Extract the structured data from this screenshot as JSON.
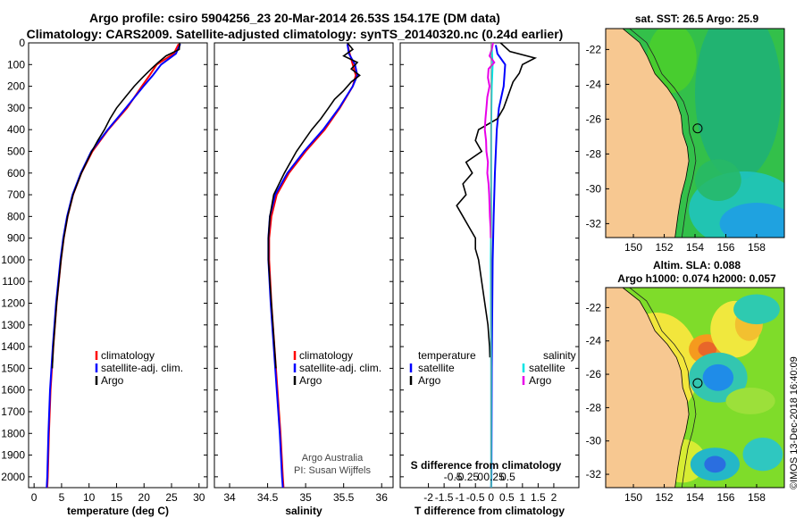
{
  "header": {
    "line1": "Argo profile: csiro 5904256_23 20-Mar-2014 26.53S 154.17E (DM data)",
    "line2": "Climatology: CARS2009. Satellite-adjusted climatology: synTS_20140320.nc (0.24d earlier)"
  },
  "colors": {
    "climatology": "#ff0000",
    "satellite": "#0000ff",
    "argo": "#000000",
    "sal_satellite": "#00e5e5",
    "sal_argo": "#e800e8",
    "land": "#f7c891"
  },
  "chart_data": [
    {
      "type": "line",
      "id": "temperature-panel",
      "xlabel": "temperature (deg C)",
      "ylabel": "",
      "xlim": [
        -1,
        31.5
      ],
      "ylim": [
        2050,
        0
      ],
      "invert_y": true,
      "xticks": [
        0,
        5,
        10,
        15,
        20,
        25,
        30
      ],
      "yticks": [
        0,
        100,
        200,
        300,
        400,
        500,
        600,
        700,
        800,
        900,
        1000,
        1100,
        1200,
        1300,
        1400,
        1500,
        1600,
        1700,
        1800,
        1900,
        2000
      ],
      "legend": [
        "climatology",
        "satellite-adj. clim.",
        "Argo"
      ],
      "series": [
        {
          "name": "climatology",
          "color": "#ff0000",
          "depth": [
            5,
            50,
            100,
            150,
            200,
            300,
            400,
            500,
            600,
            700,
            800,
            900,
            1000,
            1200,
            1400,
            1600,
            1800,
            2000,
            2050
          ],
          "values": [
            26.3,
            25.4,
            22.3,
            21.0,
            19.6,
            16.9,
            13.5,
            10.6,
            8.6,
            7.1,
            6.1,
            5.4,
            4.9,
            4.1,
            3.5,
            3.0,
            2.7,
            2.5,
            2.4
          ]
        },
        {
          "name": "satellite-adj. clim.",
          "color": "#0000ff",
          "depth": [
            5,
            50,
            100,
            150,
            200,
            300,
            400,
            500,
            600,
            700,
            800,
            900,
            1000,
            1200,
            1400,
            1600,
            1800,
            2000,
            2050
          ],
          "values": [
            26.6,
            25.8,
            23.1,
            21.6,
            19.9,
            16.7,
            13.4,
            10.4,
            8.5,
            7.0,
            6.0,
            5.3,
            4.8,
            4.0,
            3.4,
            2.9,
            2.6,
            2.4,
            2.3
          ]
        },
        {
          "name": "Argo",
          "color": "#000000",
          "depth": [
            0,
            30,
            60,
            90,
            120,
            160,
            200,
            250,
            300,
            350,
            400,
            450,
            500,
            600,
            700,
            800,
            900,
            1000,
            1200,
            1400,
            1500
          ],
          "values": [
            26.5,
            26.4,
            24.0,
            22.6,
            21.3,
            19.7,
            18.2,
            16.6,
            15.0,
            13.8,
            12.8,
            11.6,
            10.5,
            8.6,
            7.1,
            6.1,
            5.4,
            4.9,
            4.1,
            3.5,
            3.3
          ]
        }
      ]
    },
    {
      "type": "line",
      "id": "salinity-panel",
      "xlabel": "salinity",
      "xlim": [
        33.8,
        36.15
      ],
      "ylim": [
        2050,
        0
      ],
      "invert_y": true,
      "xticks": [
        34,
        34.5,
        35,
        35.5,
        36
      ],
      "legend": [
        "climatology",
        "satellite-adj. clim.",
        "Argo"
      ],
      "series": [
        {
          "name": "climatology",
          "color": "#ff0000",
          "depth": [
            5,
            50,
            100,
            150,
            200,
            300,
            400,
            500,
            600,
            700,
            800,
            900,
            1000,
            1200,
            1400,
            1600,
            1800,
            2000,
            2050
          ],
          "values": [
            35.55,
            35.58,
            35.62,
            35.66,
            35.62,
            35.45,
            35.25,
            35.0,
            34.78,
            34.62,
            34.55,
            34.52,
            34.52,
            34.55,
            34.59,
            34.63,
            34.67,
            34.7,
            34.71
          ]
        },
        {
          "name": "satellite-adj. clim.",
          "color": "#0000ff",
          "depth": [
            5,
            50,
            100,
            150,
            200,
            300,
            400,
            500,
            600,
            700,
            800,
            900,
            1000,
            1200,
            1400,
            1600,
            1800,
            2000,
            2050
          ],
          "values": [
            35.55,
            35.57,
            35.65,
            35.68,
            35.62,
            35.44,
            35.23,
            34.98,
            34.76,
            34.6,
            34.53,
            34.51,
            34.51,
            34.54,
            34.58,
            34.62,
            34.66,
            34.69,
            34.7
          ]
        },
        {
          "name": "Argo",
          "color": "#000000",
          "depth": [
            0,
            30,
            60,
            90,
            120,
            150,
            180,
            220,
            260,
            300,
            350,
            400,
            450,
            500,
            600,
            700,
            800,
            900,
            1000,
            1200,
            1400,
            1500
          ],
          "values": [
            35.55,
            35.62,
            35.5,
            35.68,
            35.6,
            35.71,
            35.6,
            35.5,
            35.38,
            35.3,
            35.2,
            35.08,
            34.98,
            34.88,
            34.72,
            34.58,
            34.53,
            34.51,
            34.51,
            34.55,
            34.59,
            34.61
          ]
        }
      ],
      "credit": [
        "Argo Australia",
        "PI: Susan Wijffels"
      ]
    },
    {
      "type": "line",
      "id": "difference-panel",
      "xlabel": "T difference from climatology",
      "xlabel2": "S difference from climatology",
      "xlim": [
        -2.9,
        2.8
      ],
      "ylim": [
        2050,
        0
      ],
      "invert_y": true,
      "xticks": [
        -2,
        -1.5,
        -1,
        -0.5,
        0,
        0.5,
        1,
        1.5,
        2
      ],
      "xticklabels": [
        "-2",
        "-1.5",
        "-1",
        "-0.5",
        "0",
        "0.5",
        "1",
        "1.5",
        "2"
      ],
      "xticks2": [
        -0.5,
        -0.25,
        0,
        0.25,
        0.5
      ],
      "xticklabels2": [
        "-0.5",
        "-0.25",
        "0",
        "0.25",
        "0.5"
      ],
      "legend_temperature": {
        "title": "temperature",
        "entries": [
          "satellite",
          "Argo"
        ]
      },
      "legend_salinity": {
        "title": "salinity",
        "entries": [
          "satellite",
          "Argo"
        ]
      },
      "series": [
        {
          "name": "temperature satellite",
          "color": "#0000ff",
          "depth": [
            10,
            50,
            100,
            200,
            300,
            400,
            600,
            800,
            1000,
            1500,
            2000,
            2050
          ],
          "values": [
            0.15,
            0.2,
            0.45,
            0.4,
            0.25,
            0.18,
            0.12,
            0.08,
            0.05,
            0.02,
            0.01,
            0.0
          ]
        },
        {
          "name": "temperature Argo",
          "color": "#000000",
          "depth": [
            0,
            40,
            70,
            100,
            140,
            180,
            220,
            260,
            300,
            350,
            400,
            450,
            500,
            550,
            600,
            650,
            700,
            750,
            800,
            850,
            900,
            950,
            1000,
            1100,
            1200,
            1300,
            1400,
            1450
          ],
          "values": [
            0.3,
            0.6,
            1.4,
            1.0,
            0.9,
            0.7,
            0.6,
            0.5,
            0.4,
            0.2,
            -0.4,
            -0.5,
            -0.3,
            -0.8,
            -0.6,
            -0.9,
            -0.8,
            -1.1,
            -0.9,
            -0.7,
            -0.5,
            -0.5,
            -0.4,
            -0.3,
            -0.2,
            -0.1,
            -0.05,
            -0.04
          ]
        },
        {
          "name": "salinity satellite",
          "color": "#00e5e5",
          "depth": [
            10,
            50,
            100,
            200,
            300,
            400,
            600,
            800,
            1000,
            1500,
            2000,
            2050
          ],
          "values": [
            0.02,
            0.03,
            0.05,
            0.02,
            0.01,
            0.0,
            0.0,
            0.0,
            -0.01,
            0.0,
            0.0,
            0.0
          ]
        },
        {
          "name": "salinity Argo",
          "color": "#e800e8",
          "depth": [
            0,
            30,
            60,
            90,
            120,
            160,
            200,
            250,
            300,
            350,
            400,
            450,
            500,
            550,
            600,
            650,
            700,
            750,
            800,
            850,
            900
          ],
          "values": [
            0.06,
            0.02,
            -0.05,
            0.1,
            -0.08,
            -0.1,
            -0.05,
            -0.12,
            -0.15,
            -0.18,
            -0.2,
            -0.16,
            -0.15,
            -0.1,
            -0.12,
            -0.08,
            -0.06,
            -0.05,
            -0.04,
            -0.02,
            -0.01
          ]
        }
      ]
    },
    {
      "type": "heatmap",
      "id": "sst-map",
      "title": "sat. SST: 26.5 Argo: 25.9",
      "xticks": [
        150,
        152,
        154,
        156,
        158
      ],
      "yticks": [
        -22,
        -24,
        -26,
        -28,
        -30,
        -32
      ],
      "xlim": [
        148.2,
        159.8
      ],
      "ylim": [
        -32.8,
        -20.8
      ],
      "float_position": {
        "lon": 154.17,
        "lat": -26.53
      },
      "coast": [
        [
          149.3,
          -20.8
        ],
        [
          150.4,
          -21.6
        ],
        [
          150.9,
          -22.4
        ],
        [
          151.4,
          -23.4
        ],
        [
          152.2,
          -24.2
        ],
        [
          152.8,
          -25.0
        ],
        [
          153.1,
          -25.8
        ],
        [
          153.2,
          -26.8
        ],
        [
          153.5,
          -27.6
        ],
        [
          153.6,
          -28.4
        ],
        [
          153.4,
          -29.4
        ],
        [
          153.1,
          -30.4
        ],
        [
          152.9,
          -31.5
        ],
        [
          152.7,
          -32.8
        ]
      ]
    },
    {
      "type": "heatmap",
      "id": "sla-map",
      "title": "Altim. SLA: 0.088",
      "subtitle": "Argo h1000: 0.074 h2000: 0.057",
      "xticks": [
        150,
        152,
        154,
        156,
        158
      ],
      "yticks": [
        -22,
        -24,
        -26,
        -28,
        -30,
        -32
      ],
      "xlim": [
        148.2,
        159.8
      ],
      "ylim": [
        -32.8,
        -20.8
      ],
      "float_position": {
        "lon": 154.17,
        "lat": -26.53
      },
      "coast": [
        [
          149.3,
          -20.8
        ],
        [
          150.4,
          -21.6
        ],
        [
          150.9,
          -22.4
        ],
        [
          151.4,
          -23.4
        ],
        [
          152.2,
          -24.2
        ],
        [
          152.8,
          -25.0
        ],
        [
          153.1,
          -25.8
        ],
        [
          153.2,
          -26.8
        ],
        [
          153.5,
          -27.6
        ],
        [
          153.6,
          -28.4
        ],
        [
          153.4,
          -29.4
        ],
        [
          153.1,
          -30.4
        ],
        [
          152.9,
          -31.5
        ],
        [
          152.7,
          -32.8
        ]
      ]
    }
  ],
  "stamp": "©IMOS 13-Dec-2018 16:40:09"
}
